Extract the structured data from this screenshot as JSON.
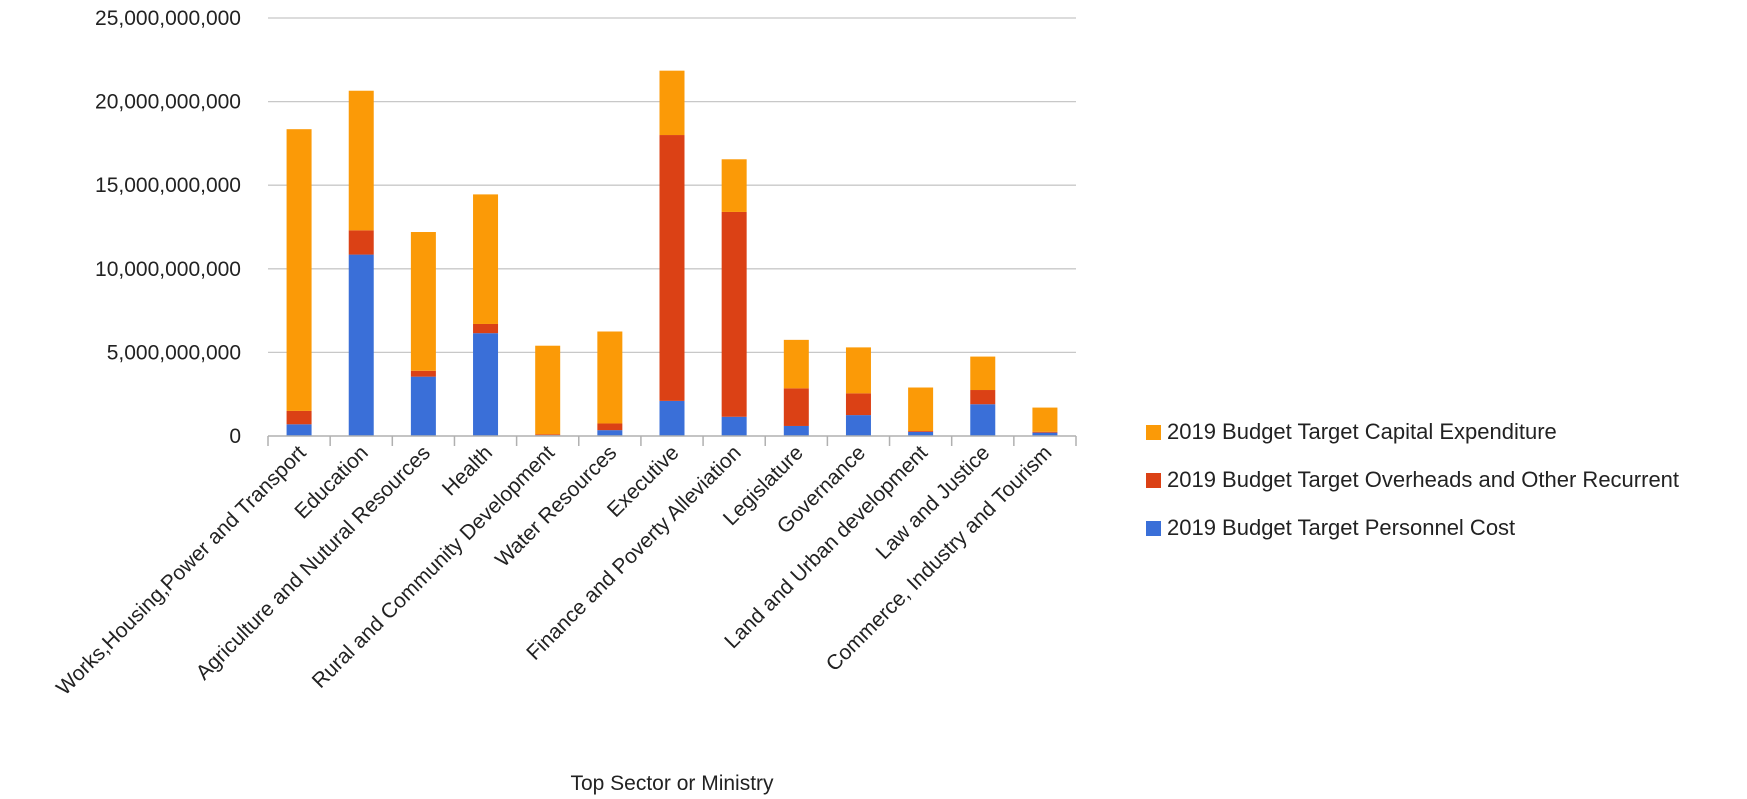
{
  "chart_data": {
    "type": "bar",
    "stacked": true,
    "title": "",
    "xlabel": "Top Sector or Ministry",
    "ylabel": "",
    "ylim": [
      0,
      25000000000
    ],
    "yticks": [
      0,
      5000000000,
      10000000000,
      15000000000,
      20000000000,
      25000000000
    ],
    "ytick_labels": [
      "0",
      "5,000,000,000",
      "10,000,000,000",
      "15,000,000,000",
      "20,000,000,000",
      "25,000,000,000"
    ],
    "grid": true,
    "legend_position": "right",
    "categories": [
      "Works,Housing,Power and Transport",
      "Education",
      "Agriculture and Nutural Resources",
      "Health",
      "Rural and Community Development",
      "Water Resources",
      "Executive",
      "Finance and Poverty Alleviation",
      "Legislature",
      "Governance",
      "Land and Urban development",
      "Law and Justice",
      "Commerce, Industry and Tourism"
    ],
    "series": [
      {
        "name": "2019 Budget Target Personnel Cost",
        "color": "#3a6fd8",
        "values": [
          700000000,
          10850000000,
          3550000000,
          6150000000,
          50000000,
          350000000,
          2100000000,
          1150000000,
          600000000,
          1250000000,
          250000000,
          1900000000,
          200000000
        ]
      },
      {
        "name": "2019 Budget Target Overheads and Other Recurrent",
        "color": "#db4115",
        "values": [
          800000000,
          1450000000,
          350000000,
          550000000,
          50000000,
          400000000,
          15900000000,
          12250000000,
          2250000000,
          1300000000,
          50000000,
          850000000,
          50000000
        ]
      },
      {
        "name": "2019 Budget Target Capital Expenditure",
        "color": "#fb9a07",
        "values": [
          16850000000,
          8350000000,
          8300000000,
          7750000000,
          5300000000,
          5500000000,
          3850000000,
          3150000000,
          2900000000,
          2750000000,
          2600000000,
          2000000000,
          1450000000
        ]
      }
    ],
    "legend_order": [
      2,
      1,
      0
    ]
  }
}
